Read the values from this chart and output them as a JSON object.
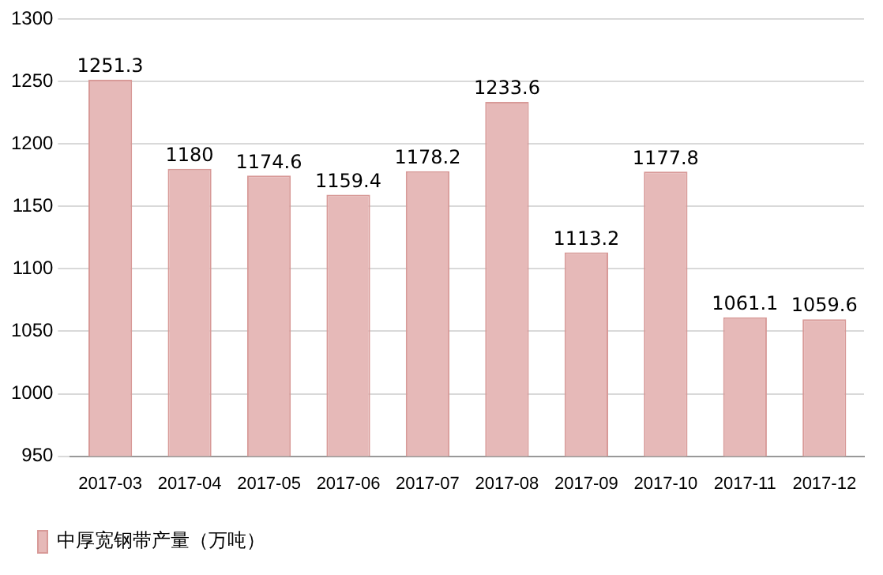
{
  "chart_data": {
    "type": "bar",
    "categories": [
      "2017-03",
      "2017-04",
      "2017-05",
      "2017-06",
      "2017-07",
      "2017-08",
      "2017-09",
      "2017-10",
      "2017-11",
      "2017-12"
    ],
    "series": [
      {
        "name": "中厚宽钢带产量（万吨）",
        "color": "#e6b9b8",
        "values": [
          1251.3,
          1180,
          1174.6,
          1159.4,
          1178.2,
          1233.6,
          1113.2,
          1177.8,
          1061.1,
          1059.6
        ]
      }
    ],
    "ylim": [
      950,
      1300
    ],
    "yticks": [
      950,
      1000,
      1050,
      1100,
      1150,
      1200,
      1250,
      1300
    ],
    "grid": "y",
    "legend": "bottom left",
    "data_labels": true
  }
}
